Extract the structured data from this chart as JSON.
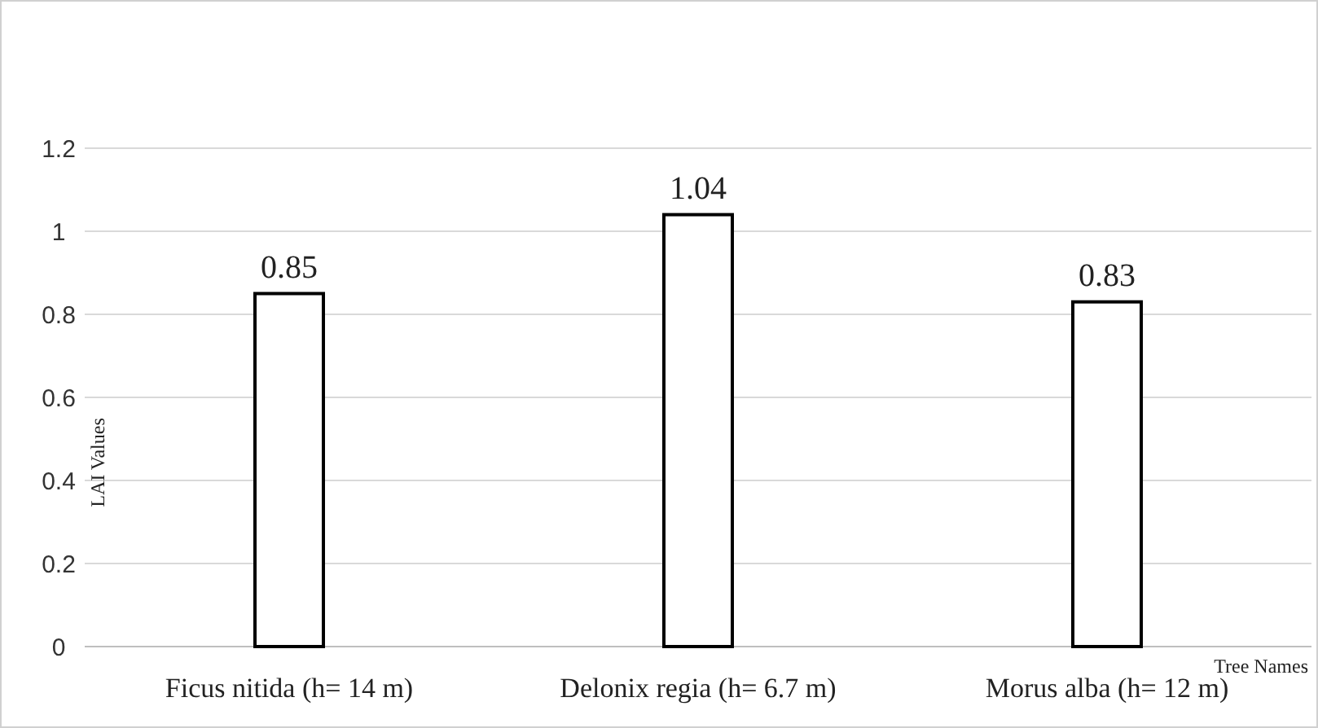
{
  "chart_data": {
    "type": "bar",
    "xlabel": "Tree Names",
    "ylabel": "LAI Values",
    "categories": [
      "Ficus nitida (h= 14 m)",
      "Delonix regia (h= 6.7 m)",
      "Morus alba (h= 12 m)"
    ],
    "values": [
      0.85,
      1.04,
      0.83
    ],
    "color": "#ffffff",
    "ylim": [
      0,
      1.2
    ],
    "yticks": [
      0,
      {
        "value": 0.2,
        "label": "0.2"
      },
      {
        "value": 0.4,
        "label": "0.4"
      },
      {
        "value": 0.6,
        "label": "0.6"
      },
      {
        "value": 0.8,
        "label": "0.8"
      },
      1,
      {
        "value": 1.2,
        "label": "1.2"
      }
    ],
    "grid": "y",
    "data_labels": true
  }
}
